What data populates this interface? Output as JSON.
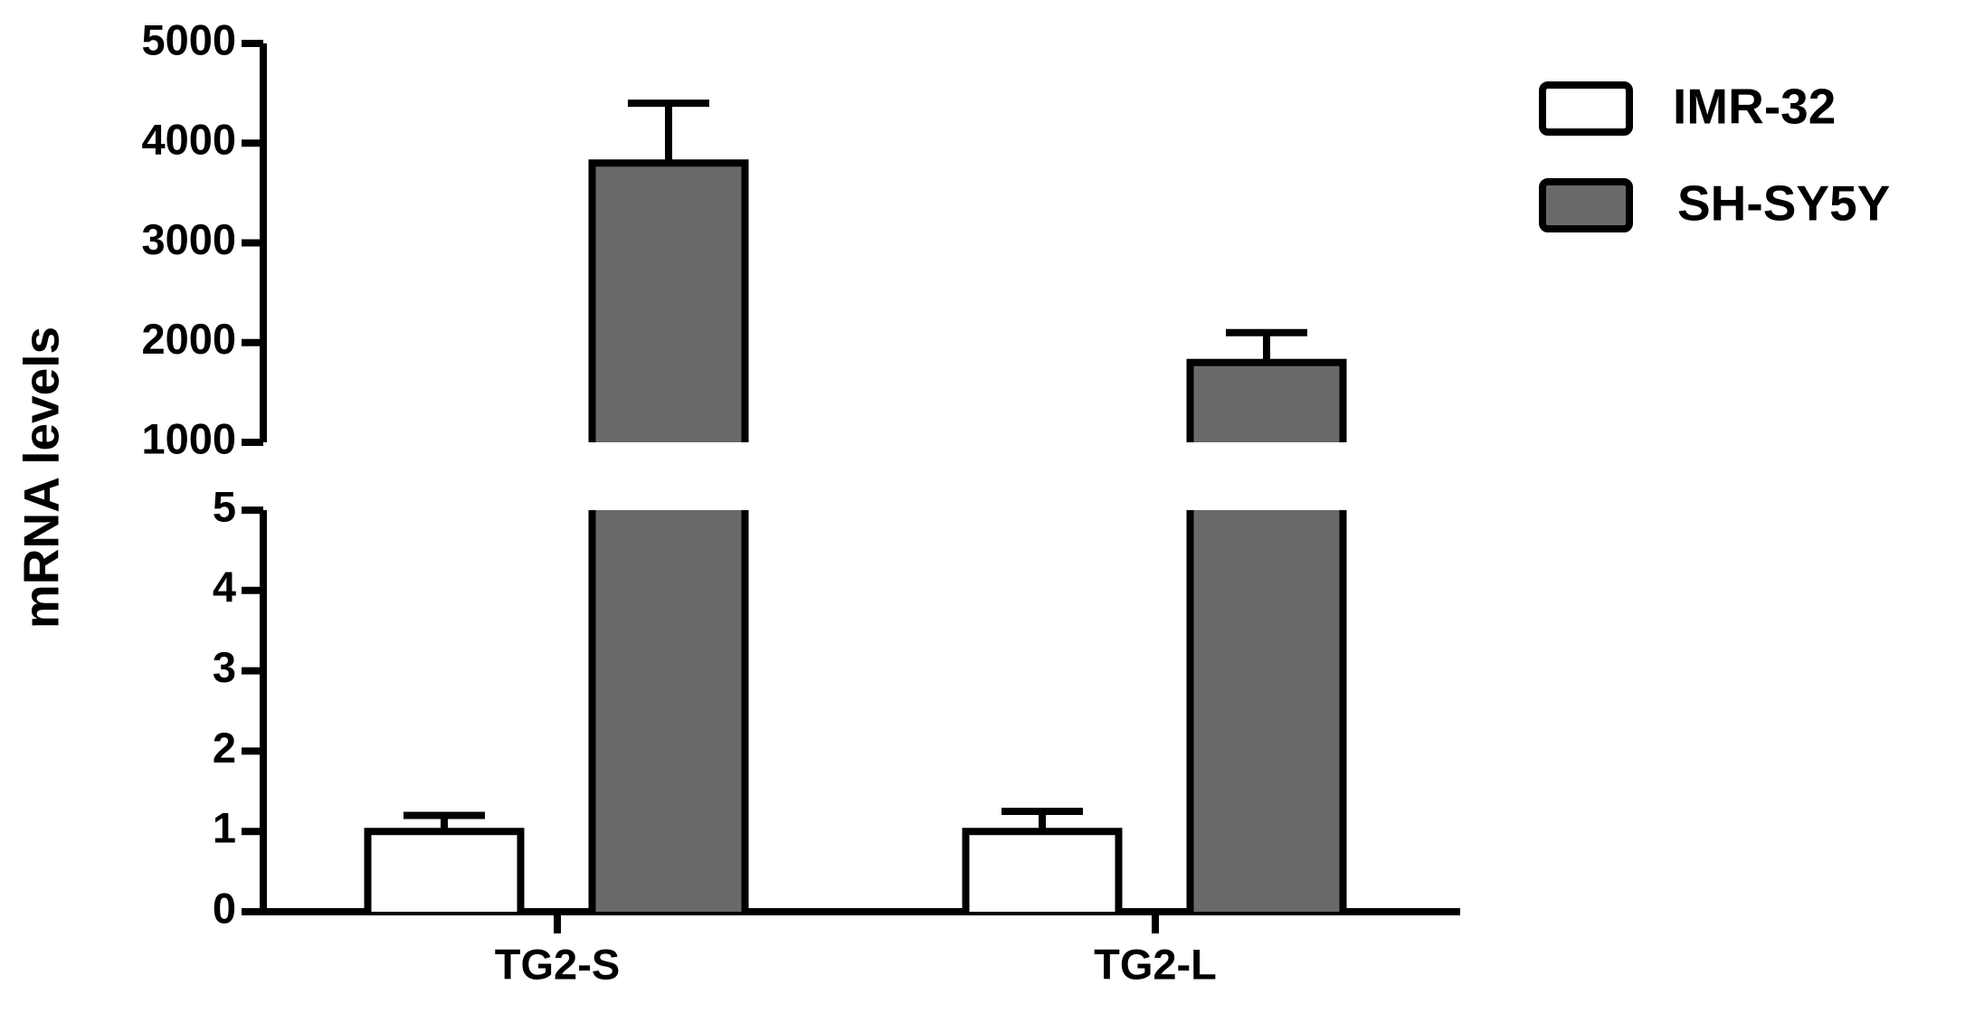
{
  "chart_data": {
    "type": "bar",
    "y_label": "mRNA levels",
    "categories": [
      "TG2-S",
      "TG2-L"
    ],
    "series": [
      {
        "name": "IMR-32",
        "color": "#ffffff",
        "values": [
          1,
          1
        ],
        "errors": [
          0.2,
          0.25
        ]
      },
      {
        "name": "SH-SY5Y",
        "color": "#696969",
        "values": [
          3800,
          1800
        ],
        "errors": [
          600,
          300
        ]
      }
    ],
    "axis_segments": [
      {
        "ylim": [
          0,
          5
        ],
        "yticks": [
          0,
          1,
          2,
          3,
          4,
          5
        ]
      },
      {
        "ylim": [
          1000,
          5000
        ],
        "yticks": [
          1000,
          2000,
          3000,
          4000,
          5000
        ]
      }
    ],
    "legend": "upper right"
  }
}
